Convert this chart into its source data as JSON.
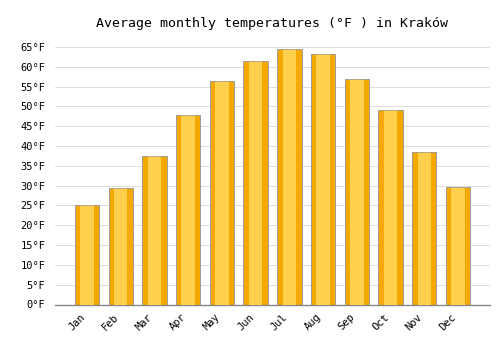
{
  "months": [
    "Jan",
    "Feb",
    "Mar",
    "Apr",
    "May",
    "Jun",
    "Jul",
    "Aug",
    "Sep",
    "Oct",
    "Nov",
    "Dec"
  ],
  "values": [
    25.2,
    29.3,
    37.4,
    47.8,
    56.3,
    61.5,
    64.4,
    63.3,
    57.0,
    49.1,
    38.5,
    29.7
  ],
  "bar_color_center": "#FFD04D",
  "bar_color_edge": "#F5A800",
  "bar_border_color": "#999999",
  "title": "Average monthly temperatures (°F ) in Kraków",
  "ylim": [
    0,
    68
  ],
  "yticks": [
    0,
    5,
    10,
    15,
    20,
    25,
    30,
    35,
    40,
    45,
    50,
    55,
    60,
    65
  ],
  "background_color": "#ffffff",
  "grid_color": "#d8d8d8",
  "title_fontsize": 9.5,
  "tick_fontsize": 7.5,
  "font_family": "monospace"
}
